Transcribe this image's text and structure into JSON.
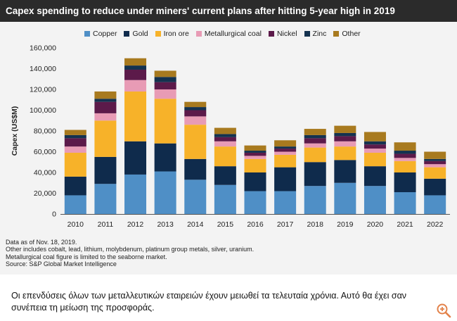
{
  "header": {
    "title": "Capex spending to reduce under miners' current plans after hitting 5-year high in 2019"
  },
  "chart_data": {
    "type": "bar",
    "stacked": true,
    "categories": [
      "2010",
      "2011",
      "2012",
      "2013",
      "2014",
      "2015",
      "2016",
      "2017",
      "2018",
      "2019",
      "2020",
      "2021",
      "2022"
    ],
    "ylabel": "Capex (US$M)",
    "ylim": [
      0,
      160000
    ],
    "yticks": [
      "0",
      "20,000",
      "40,000",
      "60,000",
      "80,000",
      "100,000",
      "120,000",
      "140,000",
      "160,000"
    ],
    "legend_position": "top",
    "series": [
      {
        "name": "Copper",
        "color": "#4f8fc6",
        "values": [
          18000,
          29000,
          38000,
          41000,
          33000,
          28000,
          22000,
          22000,
          27000,
          30000,
          27000,
          21000,
          18000
        ]
      },
      {
        "name": "Gold",
        "color": "#0f2b4c",
        "values": [
          18000,
          26000,
          32000,
          27000,
          20000,
          18000,
          18000,
          23000,
          23000,
          22000,
          19000,
          19000,
          16000
        ]
      },
      {
        "name": "Iron ore",
        "color": "#f7b229",
        "values": [
          23000,
          35000,
          48000,
          43000,
          33000,
          19000,
          13000,
          12000,
          14000,
          13000,
          13000,
          11000,
          11000
        ]
      },
      {
        "name": "Metallurgical coal",
        "color": "#e89bb5",
        "values": [
          6000,
          7000,
          11000,
          9000,
          8000,
          5000,
          3000,
          3000,
          4000,
          5000,
          4000,
          3000,
          3000
        ]
      },
      {
        "name": "Nickel",
        "color": "#5c1a4a",
        "values": [
          8000,
          11000,
          10000,
          7000,
          6000,
          4000,
          3000,
          3000,
          5000,
          5000,
          4000,
          4000,
          3000
        ]
      },
      {
        "name": "Zinc",
        "color": "#14324f",
        "values": [
          3000,
          3000,
          4000,
          5000,
          3000,
          3000,
          2000,
          2000,
          3000,
          3000,
          3000,
          3000,
          2000
        ]
      },
      {
        "name": "Other",
        "color": "#a87a1f",
        "values": [
          5000,
          7000,
          7000,
          6000,
          5000,
          6000,
          5000,
          6000,
          6000,
          7000,
          9000,
          8000,
          7000
        ]
      }
    ]
  },
  "notes": [
    "Data as of Nov. 18, 2019.",
    "Other includes cobalt, lead, lithium, molybdenum, platinum group metals, silver, uranium.",
    "Metallurgical coal figure is limited to the seaborne market.",
    "Source: S&P Global Market Intelligence"
  ],
  "caption": "Οι επενδύσεις όλων των μεταλλευτικών εταιρειών έχουν μειωθεί τα τελευταία χρόνια. Αυτό θα έχει σαν συνέπεια τη μείωση της προσφοράς.",
  "zoom": {
    "icon": "zoom-in-icon",
    "color": "#e3824a"
  }
}
